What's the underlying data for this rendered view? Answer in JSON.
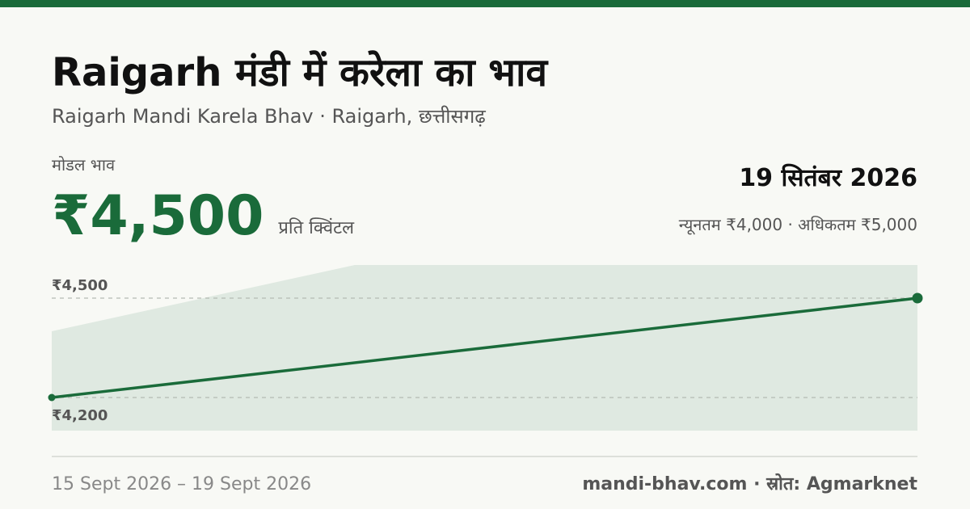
{
  "header": {
    "title": "Raigarh मंडी में करेला का भाव",
    "subtitle": "Raigarh Mandi Karela Bhav · Raigarh, छत्तीसगढ़"
  },
  "price": {
    "label": "मोडल भाव",
    "value": "₹4,500",
    "unit": "प्रति क्विंटल",
    "date": "19 सितंबर 2026",
    "range": "न्यूनतम ₹4,000 · अधिकतम ₹5,000"
  },
  "chart_data": {
    "type": "line",
    "x": [
      15,
      19
    ],
    "series": [
      {
        "color": "#1a6b3a",
        "values": [
          4200,
          4500
        ]
      }
    ],
    "band": {
      "color": "#dfe9e1",
      "x": [
        15,
        16.4,
        19
      ],
      "upper": [
        4400,
        4600,
        4600
      ],
      "lower": [
        4100,
        4100,
        4100
      ]
    },
    "xlim": [
      15,
      19
    ],
    "ylim": [
      4100,
      4600
    ],
    "yticks": [
      {
        "value": 4500,
        "label": "₹4,500"
      },
      {
        "value": 4200,
        "label": "₹4,200"
      }
    ],
    "grid": true
  },
  "footer": {
    "date_range": "15 Sept 2026 – 19 Sept 2026",
    "source": "mandi-bhav.com · स्रोत: Agmarknet"
  }
}
